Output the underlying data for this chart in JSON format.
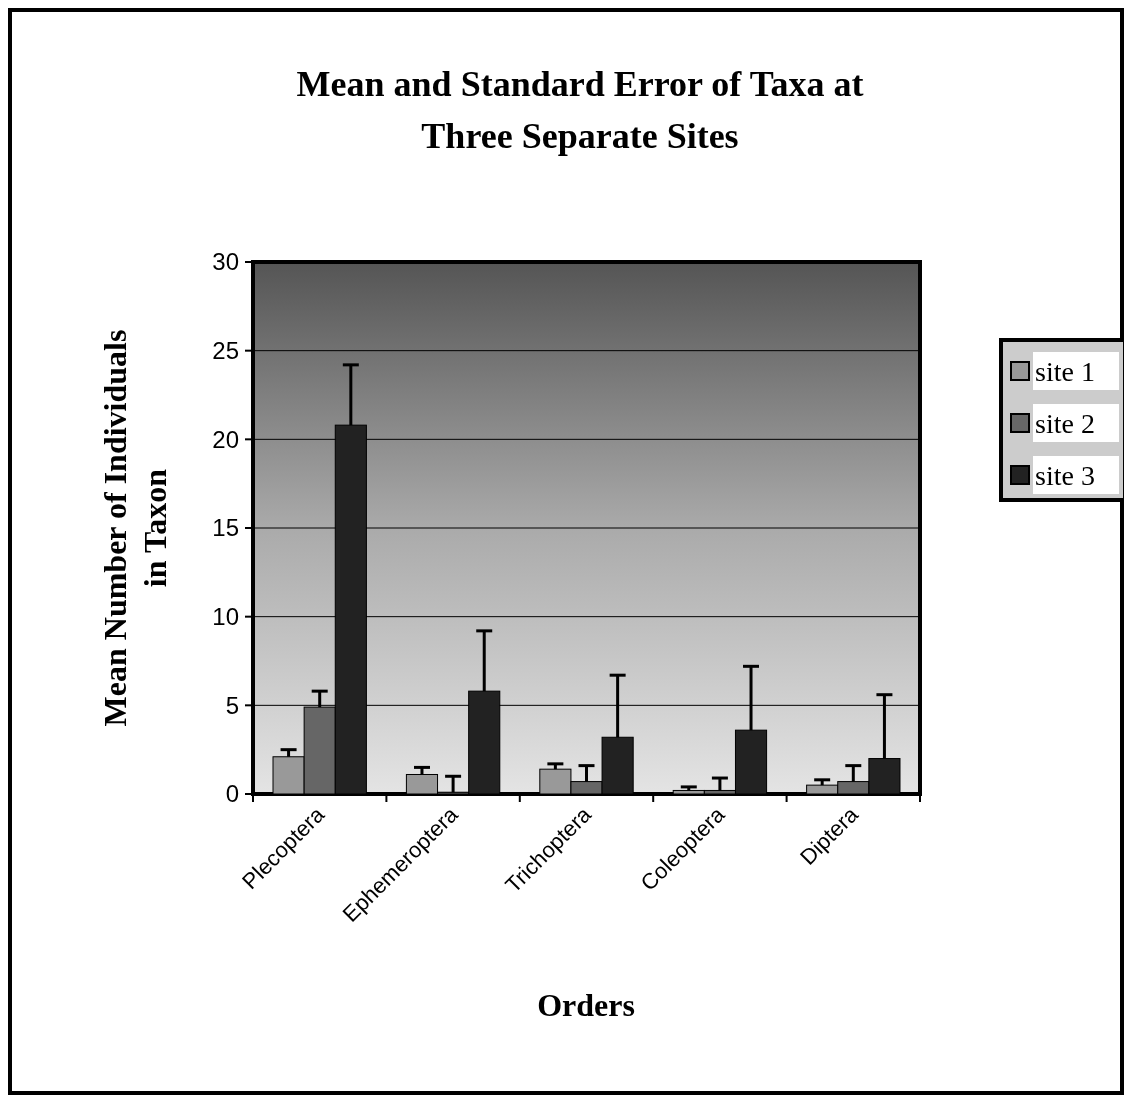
{
  "chart_data": {
    "type": "bar",
    "title": "Mean and Standard Error of Taxa at Three Separate Sites",
    "xlabel": "Orders",
    "ylabel": "Mean Number of Individuals in Taxon",
    "categories": [
      "Plecoptera",
      "Ephemeroptera",
      "Trichoptera",
      "Coleoptera",
      "Diptera"
    ],
    "series": [
      {
        "name": "site 1",
        "color": "#999999",
        "values": [
          2.1,
          1.1,
          1.4,
          0.2,
          0.5
        ],
        "errors": [
          [
            2.1,
            2.5
          ],
          [
            1.1,
            1.5
          ],
          [
            1.4,
            1.7
          ],
          [
            0.2,
            0.4
          ],
          [
            0.5,
            0.8
          ]
        ]
      },
      {
        "name": "site 2",
        "color": "#666666",
        "values": [
          4.9,
          0.1,
          0.7,
          0.2,
          0.7
        ],
        "errors": [
          [
            4.9,
            5.8
          ],
          [
            0.1,
            1.0
          ],
          [
            0.7,
            1.6
          ],
          [
            0.2,
            0.9
          ],
          [
            0.7,
            1.6
          ]
        ]
      },
      {
        "name": "site 3",
        "color": "#222222",
        "values": [
          20.8,
          5.8,
          3.2,
          3.6,
          2.0
        ],
        "errors": [
          [
            20.8,
            24.2
          ],
          [
            5.8,
            9.2
          ],
          [
            3.2,
            6.7
          ],
          [
            3.6,
            7.2
          ],
          [
            2.0,
            5.6
          ]
        ]
      }
    ],
    "ylim": [
      0,
      30
    ],
    "yticks": [
      0,
      5,
      10,
      15,
      20,
      25,
      30
    ],
    "grid": "y",
    "legend": "right"
  }
}
